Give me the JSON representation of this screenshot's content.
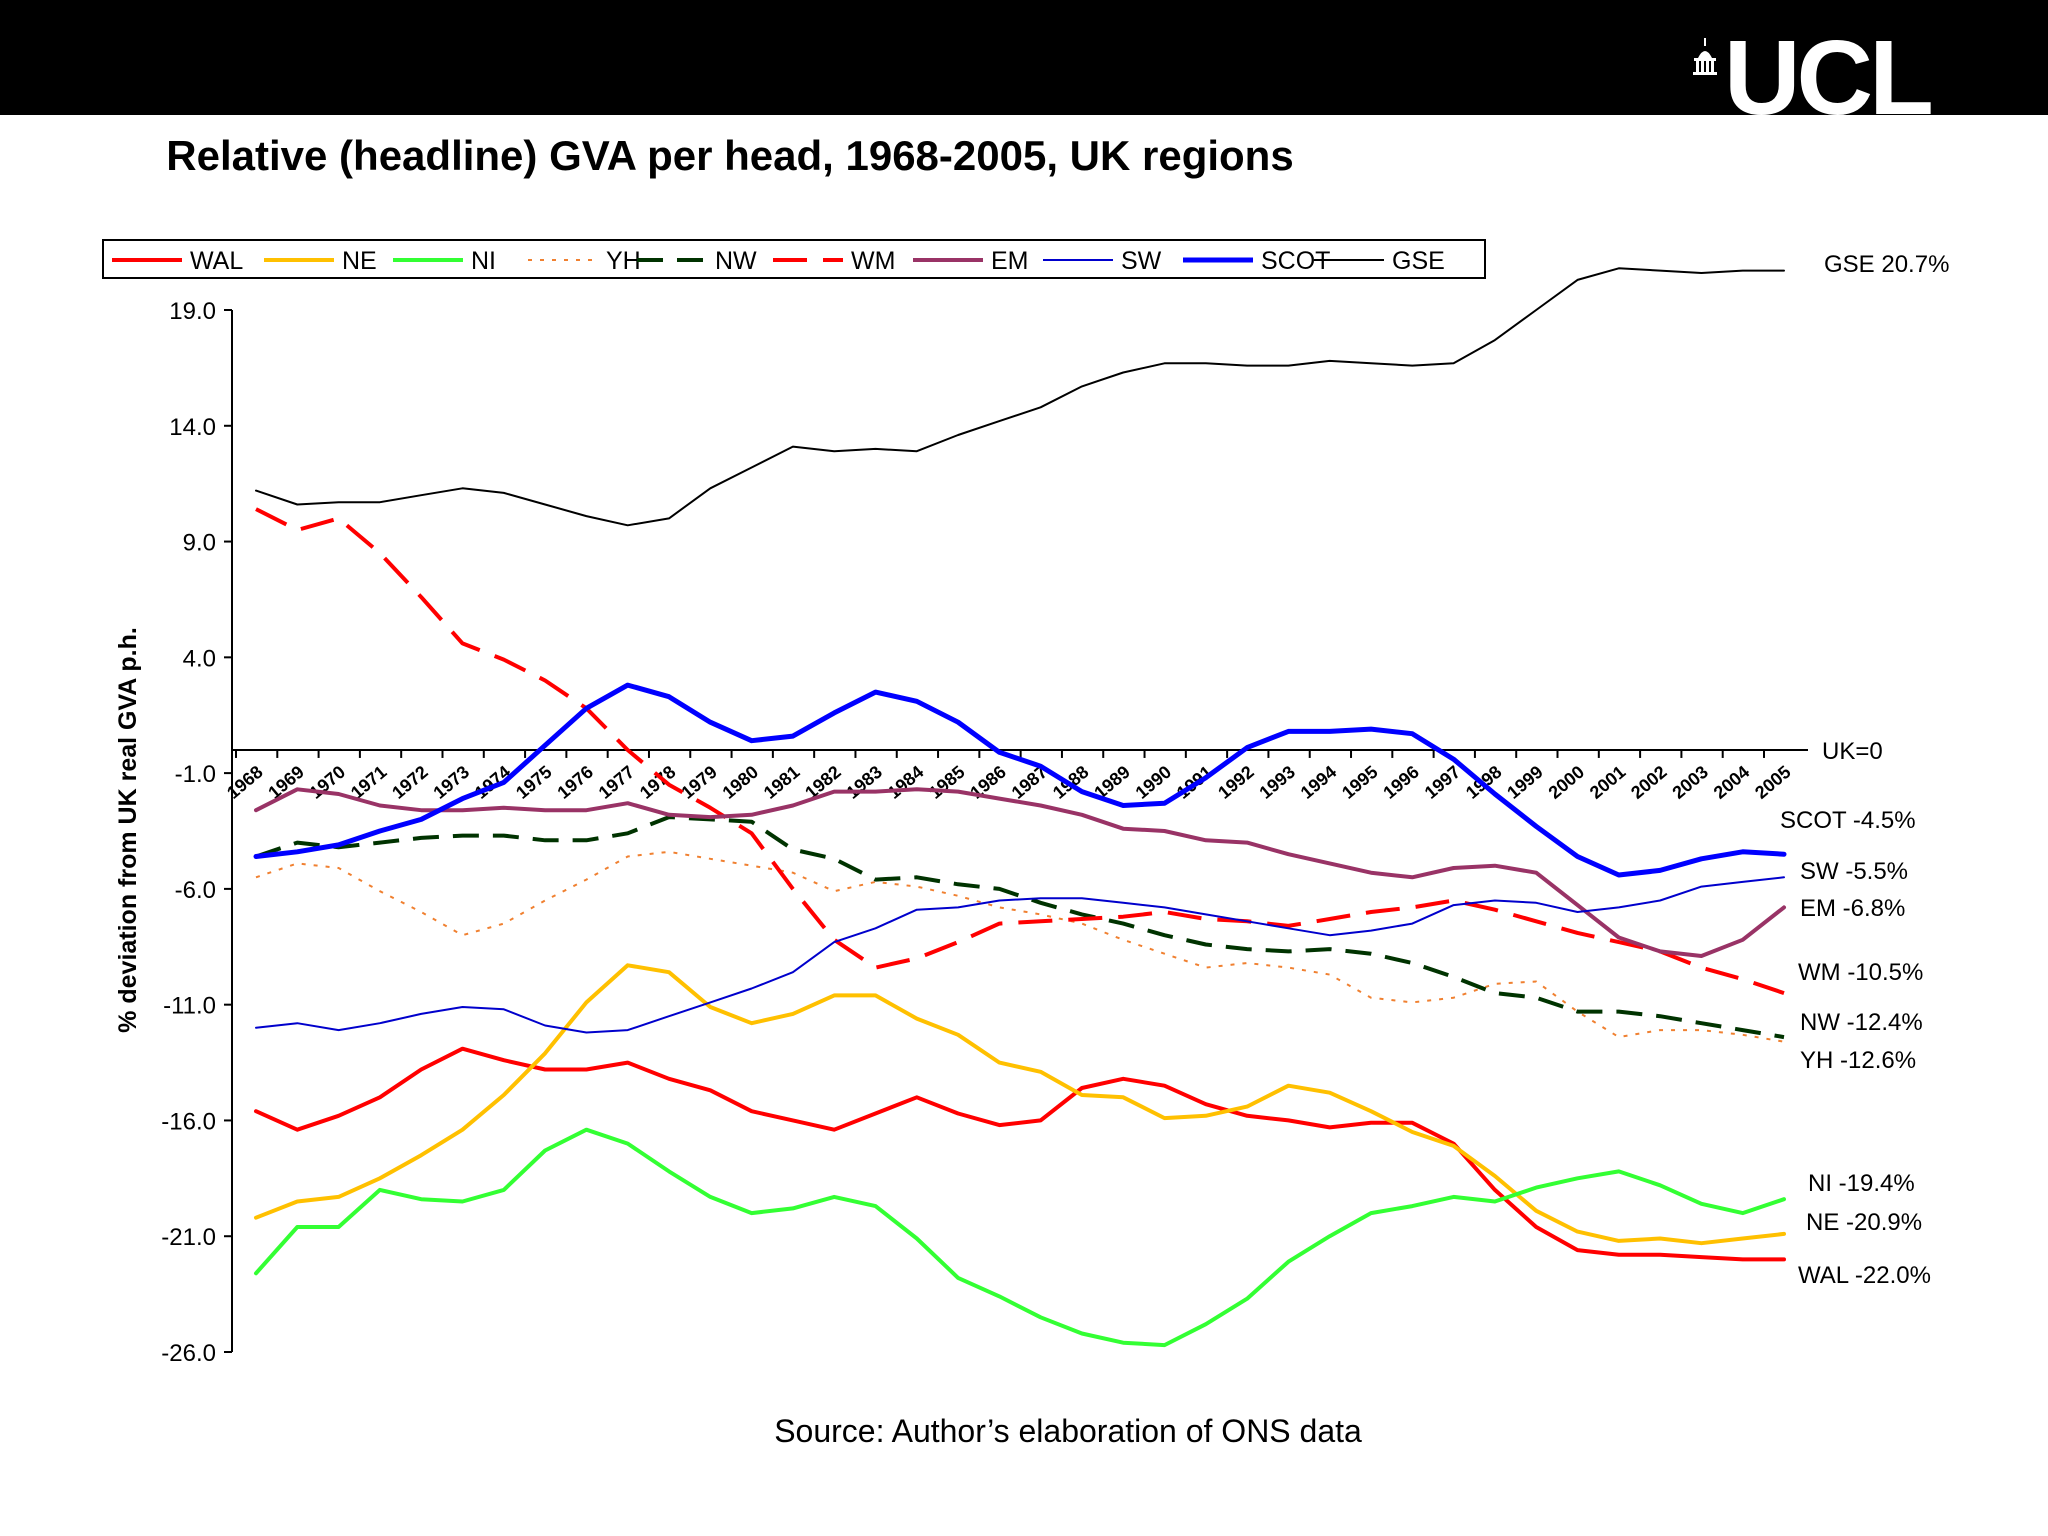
{
  "logo_text": "UCL",
  "source": "Source: Author’s elaboration of ONS data",
  "chart_data": {
    "type": "line",
    "title": "Relative (headline) GVA per head, 1968-2005, UK regions",
    "ylabel": "% deviation from UK real GVA p.h.",
    "xlabel": "",
    "ylim": [
      -26.0,
      21.0
    ],
    "yticks": [
      "19.0",
      "14.0",
      "9.0",
      "4.0",
      "-1.0",
      "-6.0",
      "-11.0",
      "-16.0",
      "-21.0",
      "-26.0"
    ],
    "baseline_label": "UK=0",
    "years": [
      "1968",
      "1969",
      "1970",
      "1971",
      "1972",
      "1973",
      "1974",
      "1975",
      "1976",
      "1977",
      "1978",
      "1979",
      "1980",
      "1981",
      "1982",
      "1983",
      "1984",
      "1985",
      "1986",
      "1987",
      "1988",
      "1989",
      "1990",
      "1991",
      "1992",
      "1993",
      "1994",
      "1995",
      "1996",
      "1997",
      "1998",
      "1999",
      "2000",
      "2001",
      "2002",
      "2003",
      "2004",
      "2005"
    ],
    "series": [
      {
        "name": "WAL",
        "color": "#ff0000",
        "dash": "solid",
        "width": 4,
        "end_label": "WAL -22.0%",
        "values": [
          -15.6,
          -16.4,
          -15.8,
          -15.0,
          -13.8,
          -12.9,
          -13.4,
          -13.8,
          -13.8,
          -13.5,
          -14.2,
          -14.7,
          -15.6,
          -16.0,
          -16.4,
          -15.7,
          -15.0,
          -15.7,
          -16.2,
          -16.0,
          -14.6,
          -14.2,
          -14.5,
          -15.3,
          -15.8,
          -16.0,
          -16.3,
          -16.1,
          -16.1,
          -17.0,
          -19.0,
          -20.6,
          -21.6,
          -21.8,
          -21.8,
          -21.9,
          -22.0,
          -22.0
        ]
      },
      {
        "name": "NE",
        "color": "#ffc000",
        "dash": "solid",
        "width": 4,
        "end_label": "NE -20.9%",
        "values": [
          -20.2,
          -19.5,
          -19.3,
          -18.5,
          -17.5,
          -16.4,
          -14.9,
          -13.1,
          -10.9,
          -9.3,
          -9.6,
          -11.1,
          -11.8,
          -11.4,
          -10.6,
          -10.6,
          -11.6,
          -12.3,
          -13.5,
          -13.9,
          -14.9,
          -15.0,
          -15.9,
          -15.8,
          -15.4,
          -14.5,
          -14.8,
          -15.6,
          -16.5,
          -17.1,
          -18.4,
          -19.9,
          -20.8,
          -21.2,
          -21.1,
          -21.3,
          -21.1,
          -20.9
        ]
      },
      {
        "name": "NI",
        "color": "#33ff33",
        "dash": "solid",
        "width": 4,
        "end_label": "NI -19.4%",
        "values": [
          -22.6,
          -20.6,
          -20.6,
          -19.0,
          -19.4,
          -19.5,
          -19.0,
          -17.3,
          -16.4,
          -17.0,
          -18.2,
          -19.3,
          -20.0,
          -19.8,
          -19.3,
          -19.7,
          -21.1,
          -22.8,
          -23.6,
          -24.5,
          -25.2,
          -25.6,
          -25.7,
          -24.8,
          -23.7,
          -22.1,
          -21.0,
          -20.0,
          -19.7,
          -19.3,
          -19.5,
          -18.9,
          -18.5,
          -18.2,
          -18.8,
          -19.6,
          -20.0,
          -19.4
        ]
      },
      {
        "name": "YH",
        "color": "#f08030",
        "dash": "dot",
        "width": 2,
        "end_label": "YH -12.6%",
        "values": [
          -5.5,
          -4.9,
          -5.1,
          -6.1,
          -7.0,
          -8.0,
          -7.5,
          -6.5,
          -5.6,
          -4.6,
          -4.4,
          -4.7,
          -5.0,
          -5.3,
          -6.1,
          -5.7,
          -5.9,
          -6.3,
          -6.8,
          -7.1,
          -7.5,
          -8.2,
          -8.8,
          -9.4,
          -9.2,
          -9.4,
          -9.7,
          -10.7,
          -10.9,
          -10.7,
          -10.1,
          -10.0,
          -11.3,
          -12.4,
          -12.1,
          -12.1,
          -12.3,
          -12.6
        ]
      },
      {
        "name": "NW",
        "color": "#003300",
        "dash": "dash",
        "width": 4,
        "end_label": "NW -12.4%",
        "values": [
          -4.6,
          -4.0,
          -4.2,
          -4.0,
          -3.8,
          -3.7,
          -3.7,
          -3.9,
          -3.9,
          -3.6,
          -2.9,
          -3.0,
          -3.1,
          -4.3,
          -4.7,
          -5.6,
          -5.5,
          -5.8,
          -6.0,
          -6.6,
          -7.1,
          -7.5,
          -8.0,
          -8.4,
          -8.6,
          -8.7,
          -8.6,
          -8.8,
          -9.2,
          -9.8,
          -10.5,
          -10.7,
          -11.3,
          -11.3,
          -11.5,
          -11.8,
          -12.1,
          -12.4
        ]
      },
      {
        "name": "WM",
        "color": "#ff0000",
        "dash": "longdash",
        "width": 4,
        "end_label": "WM -10.5%",
        "values": [
          10.4,
          9.5,
          10.0,
          8.5,
          6.6,
          4.6,
          3.9,
          3.0,
          1.8,
          0.0,
          -1.5,
          -2.5,
          -3.6,
          -6.0,
          -8.2,
          -9.4,
          -9.0,
          -8.3,
          -7.5,
          -7.4,
          -7.3,
          -7.2,
          -7.0,
          -7.3,
          -7.4,
          -7.6,
          -7.3,
          -7.0,
          -6.8,
          -6.5,
          -6.9,
          -7.4,
          -7.9,
          -8.3,
          -8.7,
          -9.4,
          -9.9,
          -10.5
        ]
      },
      {
        "name": "EM",
        "color": "#993366",
        "dash": "solid",
        "width": 4,
        "end_label": "EM -6.8%",
        "values": [
          -2.6,
          -1.7,
          -1.9,
          -2.4,
          -2.6,
          -2.6,
          -2.5,
          -2.6,
          -2.6,
          -2.3,
          -2.8,
          -2.9,
          -2.8,
          -2.4,
          -1.8,
          -1.8,
          -1.7,
          -1.8,
          -2.1,
          -2.4,
          -2.8,
          -3.4,
          -3.5,
          -3.9,
          -4.0,
          -4.5,
          -4.9,
          -5.3,
          -5.5,
          -5.1,
          -5.0,
          -5.3,
          -6.7,
          -8.1,
          -8.7,
          -8.9,
          -8.2,
          -6.8
        ]
      },
      {
        "name": "SW",
        "color": "#0000cc",
        "dash": "solid",
        "width": 2,
        "end_label": "SW -5.5%",
        "values": [
          -12.0,
          -11.8,
          -12.1,
          -11.8,
          -11.4,
          -11.1,
          -11.2,
          -11.9,
          -12.2,
          -12.1,
          -11.5,
          -10.9,
          -10.3,
          -9.6,
          -8.3,
          -7.7,
          -6.9,
          -6.8,
          -6.5,
          -6.4,
          -6.4,
          -6.6,
          -6.8,
          -7.1,
          -7.4,
          -7.7,
          -8.0,
          -7.8,
          -7.5,
          -6.7,
          -6.5,
          -6.6,
          -7.0,
          -6.8,
          -6.5,
          -5.9,
          -5.7,
          -5.5
        ]
      },
      {
        "name": "SCOT",
        "color": "#0000ff",
        "dash": "solid",
        "width": 5,
        "end_label": "SCOT -4.5%",
        "values": [
          -4.6,
          -4.4,
          -4.1,
          -3.5,
          -3.0,
          -2.1,
          -1.4,
          0.2,
          1.8,
          2.8,
          2.3,
          1.2,
          0.4,
          0.6,
          1.6,
          2.5,
          2.1,
          1.2,
          -0.1,
          -0.7,
          -1.8,
          -2.4,
          -2.3,
          -1.2,
          0.1,
          0.8,
          0.8,
          0.9,
          0.7,
          -0.4,
          -1.9,
          -3.3,
          -4.6,
          -5.4,
          -5.2,
          -4.7,
          -4.4,
          -4.5
        ]
      },
      {
        "name": "GSE",
        "color": "#000000",
        "dash": "solid",
        "width": 2,
        "end_label": "GSE 20.7%",
        "values": [
          11.2,
          10.6,
          10.7,
          10.7,
          11.0,
          11.3,
          11.1,
          10.6,
          10.1,
          9.7,
          10.0,
          11.3,
          12.2,
          13.1,
          12.9,
          13.0,
          12.9,
          13.6,
          14.2,
          14.8,
          15.7,
          16.3,
          16.7,
          16.7,
          16.6,
          16.6,
          16.8,
          16.7,
          16.6,
          16.7,
          17.7,
          19.0,
          20.3,
          20.8,
          20.7,
          20.6,
          20.7,
          20.7
        ]
      }
    ]
  }
}
